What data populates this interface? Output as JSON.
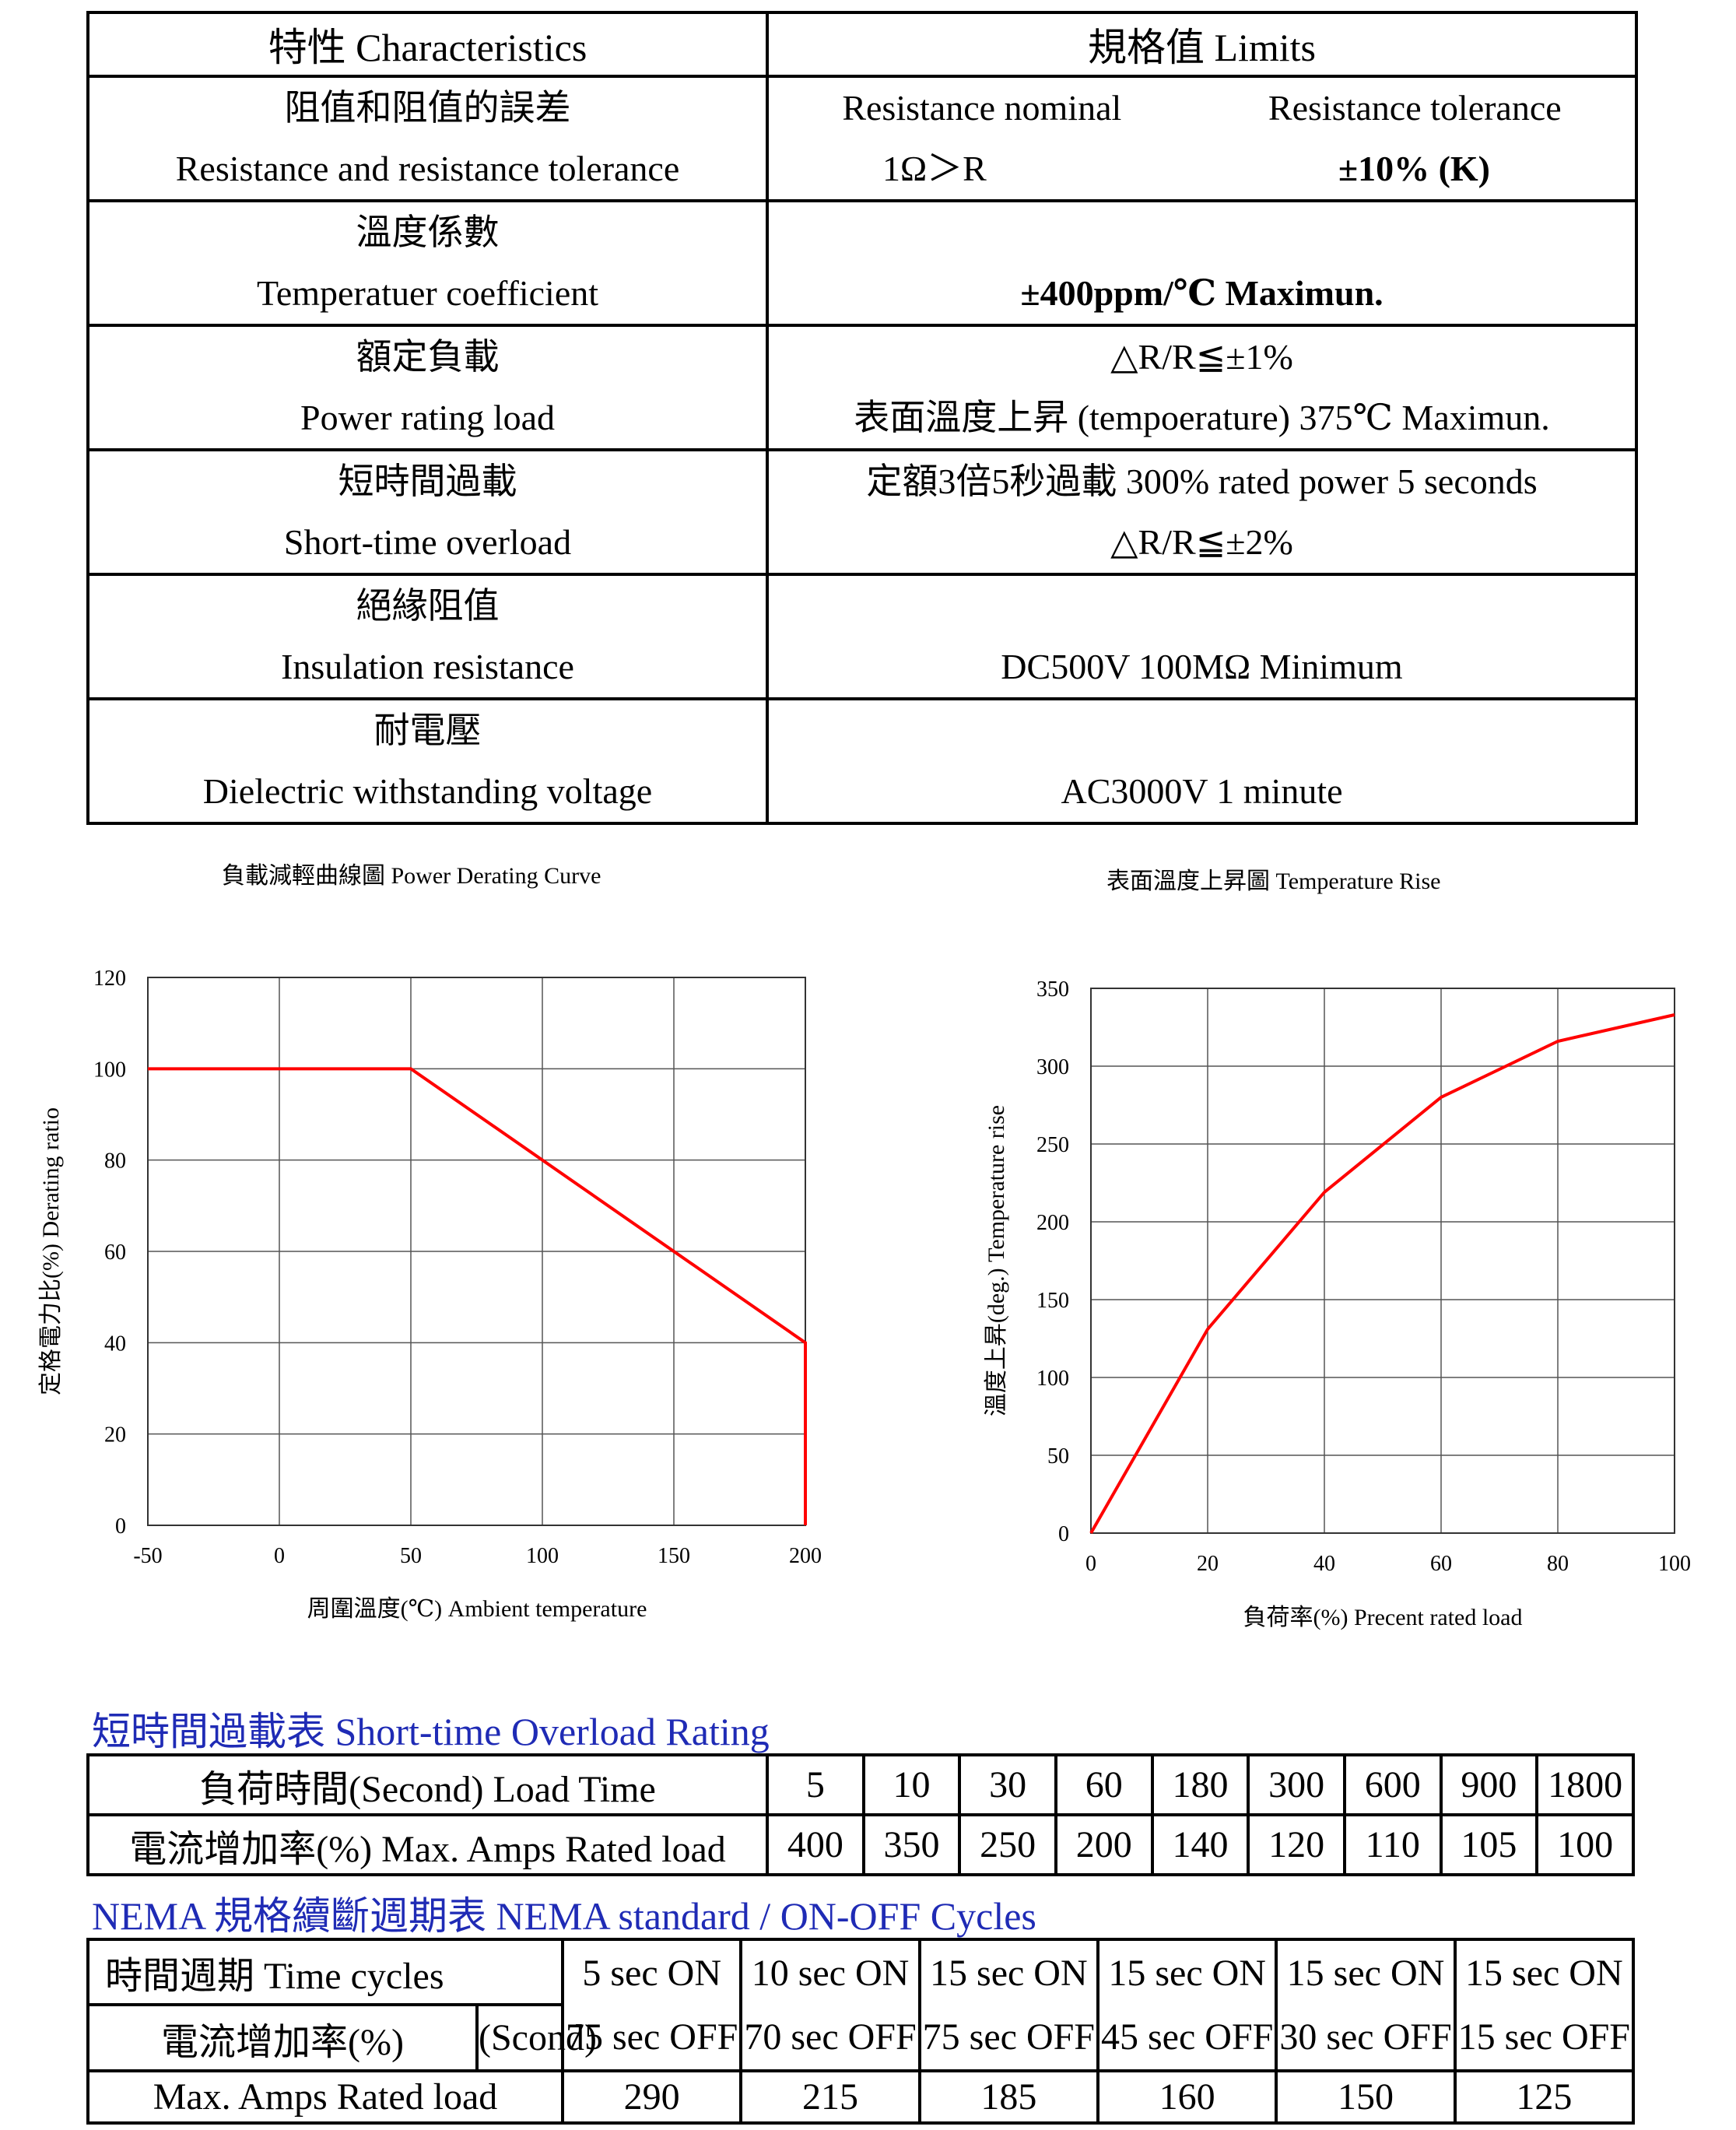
{
  "spec": {
    "header": {
      "characteristics": "特性  Characteristics",
      "limits": "規格值  Limits"
    },
    "rows": [
      {
        "name_zh": "阻值和阻值的誤差",
        "name_en": "Resistance and resistance tolerance",
        "nominal_label": "Resistance nominal",
        "nominal_value": "1Ω＞R",
        "tolerance_label": "Resistance tolerance",
        "tolerance_value": "±10%  (K)"
      },
      {
        "name_zh": "溫度係數",
        "name_en": "Temperatuer coefficient",
        "limit_line1": "",
        "limit_line2": "±400ppm/℃   Maximun."
      },
      {
        "name_zh": "額定負載",
        "name_en": "Power rating load",
        "limit_line1": "△R/R≦±1%",
        "limit_line2": "表面溫度上昇  (tempoerature)  375℃   Maximun."
      },
      {
        "name_zh": "短時間過載",
        "name_en": "Short-time overload",
        "limit_line1": "定額3倍5秒過載 300%  rated power 5 seconds",
        "limit_line2": "△R/R≦±2%"
      },
      {
        "name_zh": "絕緣阻值",
        "name_en": "Insulation resistance",
        "limit_line1": "",
        "limit_line2": "DC500V 100MΩ  Minimum"
      },
      {
        "name_zh": "耐電壓",
        "name_en": "Dielectric withstanding voltage",
        "limit_line1": "",
        "limit_line2": "AC3000V  1  minute"
      }
    ]
  },
  "chart_data": [
    {
      "type": "line",
      "title": "負載減輕曲線圖  Power Derating Curve",
      "xlabel": "周圍溫度(℃)  Ambient temperature",
      "ylabel": "定格電力比(%)  Derating ratio",
      "xlim": [
        -50,
        200
      ],
      "ylim": [
        0,
        120
      ],
      "xticks": [
        -50,
        0,
        50,
        100,
        150,
        200
      ],
      "yticks": [
        0,
        20,
        40,
        60,
        80,
        100,
        120
      ],
      "grid": true,
      "color": "#ff0000",
      "x": [
        -50,
        50,
        200,
        200
      ],
      "y": [
        100,
        100,
        40,
        0
      ]
    },
    {
      "type": "line",
      "title": "表面溫度上昇圖  Temperature Rise",
      "xlabel": "負荷率(%)  Precent rated load",
      "ylabel": "溫度上昇(deg.)  Temperature rise",
      "xlim": [
        0,
        100
      ],
      "ylim": [
        0,
        350
      ],
      "xticks": [
        0,
        20,
        40,
        60,
        80,
        100
      ],
      "yticks": [
        0,
        50,
        100,
        150,
        200,
        250,
        300,
        350
      ],
      "grid": true,
      "color": "#ff0000",
      "x": [
        0,
        20,
        40,
        60,
        80,
        100
      ],
      "y": [
        0,
        131,
        219,
        280,
        316,
        333
      ]
    }
  ],
  "overload": {
    "title": "短時間過載表  Short-time Overload Rating",
    "row1_label": "負荷時間(Second)  Load Time",
    "row2_label": "電流增加率(%)  Max. Amps Rated load",
    "load_times": [
      "5",
      "10",
      "30",
      "60",
      "180",
      "300",
      "600",
      "900",
      "1800"
    ],
    "rated_loads": [
      "400",
      "350",
      "250",
      "200",
      "140",
      "120",
      "110",
      "105",
      "100"
    ]
  },
  "nema": {
    "title": "NEMA 規格續斷週期表  NEMA standard / ON-OFF Cycles",
    "label_cycles": "時間週期 Time cycles",
    "label_rate": "電流增加率(%)",
    "label_scond": "(Scond)",
    "label_max": "Max. Amps Rated load",
    "on": [
      "5 sec ON",
      "10 sec ON",
      "15 sec ON",
      "15 sec ON",
      "15 sec ON",
      "15 sec ON"
    ],
    "off": [
      "75 sec OFF",
      "70 sec OFF",
      "75 sec OFF",
      "45 sec OFF",
      "30 sec OFF",
      "15 sec OFF"
    ],
    "values": [
      "290",
      "215",
      "185",
      "160",
      "150",
      "125"
    ]
  }
}
